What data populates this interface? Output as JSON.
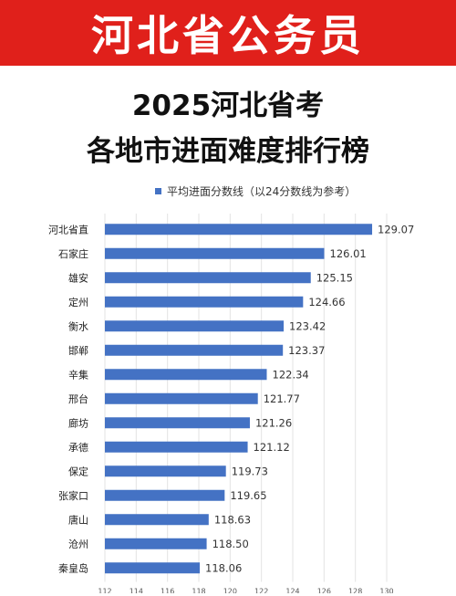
{
  "banner": {
    "text": "河北省公务员"
  },
  "headline": {
    "line1": "2025河北省考",
    "line2": "各地市进面难度排行榜"
  },
  "colors": {
    "banner": "#e0201b",
    "bar": "#4472c4",
    "grid": "#e3e3e3"
  },
  "chart_data": {
    "type": "bar",
    "orientation": "horizontal",
    "legend": "平均进面分数线（以24分数线为参考）",
    "legend_position": "top",
    "categories": [
      "河北省直",
      "石家庄",
      "雄安",
      "定州",
      "衡水",
      "邯郸",
      "辛集",
      "邢台",
      "廊坊",
      "承德",
      "保定",
      "张家口",
      "唐山",
      "沧州",
      "秦皇岛"
    ],
    "values": [
      129.07,
      126.01,
      125.15,
      124.66,
      123.42,
      123.37,
      122.34,
      121.77,
      121.26,
      121.12,
      119.73,
      119.65,
      118.63,
      118.5,
      118.06
    ],
    "value_labels": [
      "129.07",
      "126.01",
      "125.15",
      "124.66",
      "123.42",
      "123.37",
      "122.34",
      "121.77",
      "121.26",
      "121.12",
      "119.73",
      "119.65",
      "118.63",
      "118.50",
      "118.06"
    ],
    "xlim": [
      112,
      130
    ],
    "xticks": [
      "112",
      "114",
      "116",
      "118",
      "120",
      "122",
      "124",
      "126",
      "128",
      "130"
    ],
    "grid": true
  }
}
